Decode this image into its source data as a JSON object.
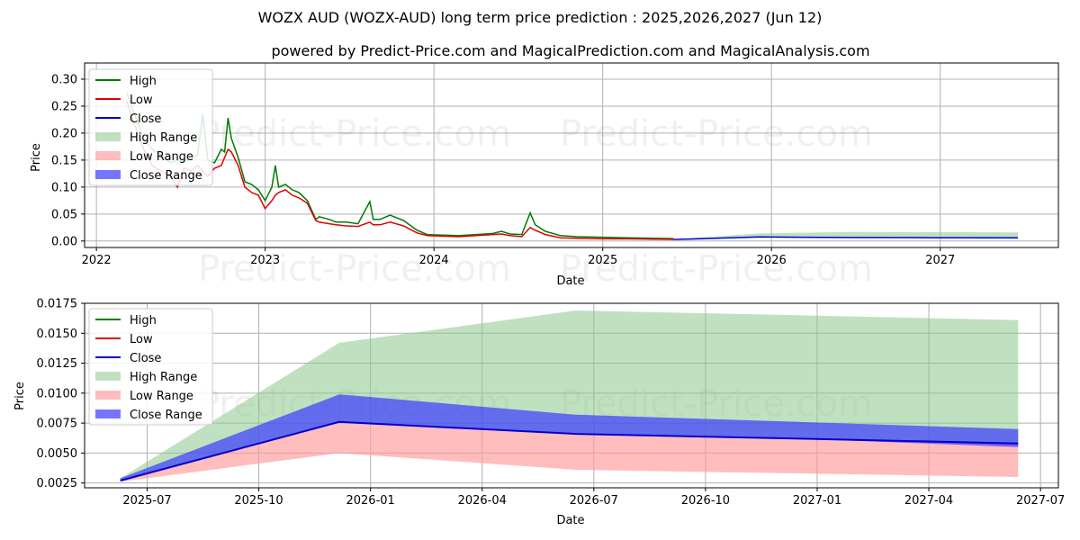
{
  "title": "WOZX AUD (WOZX-AUD) long term price prediction : 2025,2026,2027 (Jun 12)",
  "subtitle": "powered by Predict-Price.com and MagicalPrediction.com and MagicalAnalysis.com",
  "watermark": "Predict-Price.com",
  "legend": {
    "high": "High",
    "low": "Low",
    "close": "Close",
    "high_range": "High Range",
    "low_range": "Low Range",
    "close_range": "Close Range"
  },
  "colors": {
    "high": "#007a00",
    "low": "#e00000",
    "close": "#0000cc",
    "high_range": "#8cc98c",
    "low_range": "#ff9a9a",
    "close_range": "#3b3bff",
    "grid": "#b0b0b0"
  },
  "chart_data": [
    {
      "type": "line",
      "name": "history",
      "xlabel": "Date",
      "ylabel": "Price",
      "xlim": [
        2021.93,
        2027.7
      ],
      "ylim": [
        -0.012,
        0.33
      ],
      "x_ticks": [
        2022,
        2023,
        2024,
        2025,
        2026,
        2027
      ],
      "x_tick_labels": [
        "2022",
        "2023",
        "2024",
        "2025",
        "2026",
        "2027"
      ],
      "y_ticks": [
        0.0,
        0.05,
        0.1,
        0.15,
        0.2,
        0.25,
        0.3
      ],
      "y_tick_labels": [
        "0.00",
        "0.05",
        "0.10",
        "0.15",
        "0.20",
        "0.25",
        "0.30"
      ],
      "grid": true,
      "legend_position": "top-left",
      "series": [
        {
          "name": "High",
          "x": [
            2022.18,
            2022.22,
            2022.28,
            2022.33,
            2022.38,
            2022.44,
            2022.48,
            2022.52,
            2022.56,
            2022.6,
            2022.63,
            2022.66,
            2022.7,
            2022.74,
            2022.76,
            2022.78,
            2022.8,
            2022.84,
            2022.88,
            2022.92,
            2022.96,
            2023.0,
            2023.04,
            2023.06,
            2023.08,
            2023.12,
            2023.16,
            2023.2,
            2023.25,
            2023.3,
            2023.32,
            2023.38,
            2023.42,
            2023.48,
            2023.55,
            2023.62,
            2023.64,
            2023.68,
            2023.74,
            2023.82,
            2023.9,
            2023.96,
            2024.05,
            2024.15,
            2024.25,
            2024.35,
            2024.4,
            2024.45,
            2024.52,
            2024.57,
            2024.6,
            2024.66,
            2024.75,
            2024.85,
            2025.0,
            2025.15,
            2025.3,
            2025.42
          ],
          "values": [
            0.275,
            0.24,
            0.19,
            0.17,
            0.16,
            0.145,
            0.15,
            0.148,
            0.152,
            0.16,
            0.235,
            0.15,
            0.145,
            0.17,
            0.165,
            0.228,
            0.19,
            0.155,
            0.11,
            0.105,
            0.095,
            0.075,
            0.1,
            0.14,
            0.1,
            0.105,
            0.095,
            0.09,
            0.075,
            0.04,
            0.045,
            0.04,
            0.035,
            0.035,
            0.032,
            0.073,
            0.04,
            0.04,
            0.048,
            0.038,
            0.02,
            0.012,
            0.011,
            0.01,
            0.012,
            0.014,
            0.018,
            0.013,
            0.012,
            0.052,
            0.03,
            0.018,
            0.01,
            0.008,
            0.007,
            0.006,
            0.005,
            0.0045
          ]
        },
        {
          "name": "Low",
          "x": [
            2022.18,
            2022.22,
            2022.28,
            2022.33,
            2022.38,
            2022.44,
            2022.48,
            2022.52,
            2022.56,
            2022.6,
            2022.63,
            2022.66,
            2022.7,
            2022.74,
            2022.76,
            2022.78,
            2022.8,
            2022.84,
            2022.88,
            2022.92,
            2022.96,
            2023.0,
            2023.04,
            2023.06,
            2023.08,
            2023.12,
            2023.16,
            2023.2,
            2023.25,
            2023.3,
            2023.32,
            2023.38,
            2023.42,
            2023.48,
            2023.55,
            2023.62,
            2023.64,
            2023.68,
            2023.74,
            2023.82,
            2023.9,
            2023.96,
            2024.05,
            2024.15,
            2024.25,
            2024.35,
            2024.4,
            2024.45,
            2024.52,
            2024.57,
            2024.6,
            2024.66,
            2024.75,
            2024.85,
            2025.0,
            2025.15,
            2025.3,
            2025.42
          ],
          "values": [
            0.26,
            0.22,
            0.17,
            0.14,
            0.13,
            0.12,
            0.1,
            0.135,
            0.13,
            0.14,
            0.13,
            0.12,
            0.135,
            0.14,
            0.155,
            0.17,
            0.165,
            0.14,
            0.1,
            0.09,
            0.085,
            0.06,
            0.075,
            0.085,
            0.09,
            0.095,
            0.085,
            0.08,
            0.07,
            0.038,
            0.035,
            0.032,
            0.03,
            0.028,
            0.027,
            0.035,
            0.03,
            0.03,
            0.035,
            0.028,
            0.015,
            0.01,
            0.009,
            0.008,
            0.01,
            0.012,
            0.013,
            0.01,
            0.008,
            0.025,
            0.02,
            0.012,
            0.006,
            0.005,
            0.004,
            0.004,
            0.0035,
            0.003
          ]
        },
        {
          "name": "Close",
          "x": [
            2025.42,
            2025.93,
            2026.46,
            2026.96,
            2027.46
          ],
          "values": [
            0.0028,
            0.0076,
            0.0066,
            0.0062,
            0.0058
          ]
        },
        {
          "name": "High Range",
          "x": [
            2025.42,
            2025.93,
            2026.46,
            2026.96,
            2027.46
          ],
          "upper": [
            0.003,
            0.0142,
            0.0169,
            0.0165,
            0.0161
          ],
          "lower": [
            0.0028,
            0.0076,
            0.0066,
            0.0062,
            0.0058
          ]
        }
      ]
    },
    {
      "type": "line",
      "name": "forecast",
      "xlabel": "Date",
      "ylabel": "Price",
      "xlim": [
        2025.36,
        2027.54
      ],
      "ylim": [
        0.0021,
        0.0175
      ],
      "x_ticks": [
        2025.5,
        2025.75,
        2026.0,
        2026.25,
        2026.5,
        2026.75,
        2027.0,
        2027.25,
        2027.5
      ],
      "x_tick_labels": [
        "2025-07",
        "2025-10",
        "2026-01",
        "2026-04",
        "2026-07",
        "2026-10",
        "2027-01",
        "2027-04",
        "2027-07"
      ],
      "y_ticks": [
        0.0025,
        0.005,
        0.0075,
        0.01,
        0.0125,
        0.015,
        0.0175
      ],
      "y_tick_labels": [
        "0.0025",
        "0.0050",
        "0.0075",
        "0.0100",
        "0.0125",
        "0.0150",
        "0.0175"
      ],
      "grid": true,
      "legend_position": "top-left",
      "x": [
        2025.44,
        2025.93,
        2026.46,
        2026.96,
        2027.45
      ],
      "series": [
        {
          "name": "Close",
          "values": [
            0.0027,
            0.0076,
            0.0066,
            0.0062,
            0.0058
          ]
        },
        {
          "name": "High Range",
          "upper": [
            0.0029,
            0.0142,
            0.0169,
            0.0165,
            0.0161
          ],
          "lower": [
            0.0027,
            0.0076,
            0.0066,
            0.0062,
            0.0058
          ]
        },
        {
          "name": "Close Range",
          "upper": [
            0.0029,
            0.0099,
            0.0082,
            0.0076,
            0.007
          ],
          "lower": [
            0.0027,
            0.0076,
            0.0066,
            0.0062,
            0.0055
          ]
        },
        {
          "name": "Low Range",
          "upper": [
            0.0027,
            0.0076,
            0.0066,
            0.0062,
            0.0058
          ],
          "lower": [
            0.0026,
            0.005,
            0.0036,
            0.0033,
            0.003
          ]
        }
      ]
    }
  ]
}
